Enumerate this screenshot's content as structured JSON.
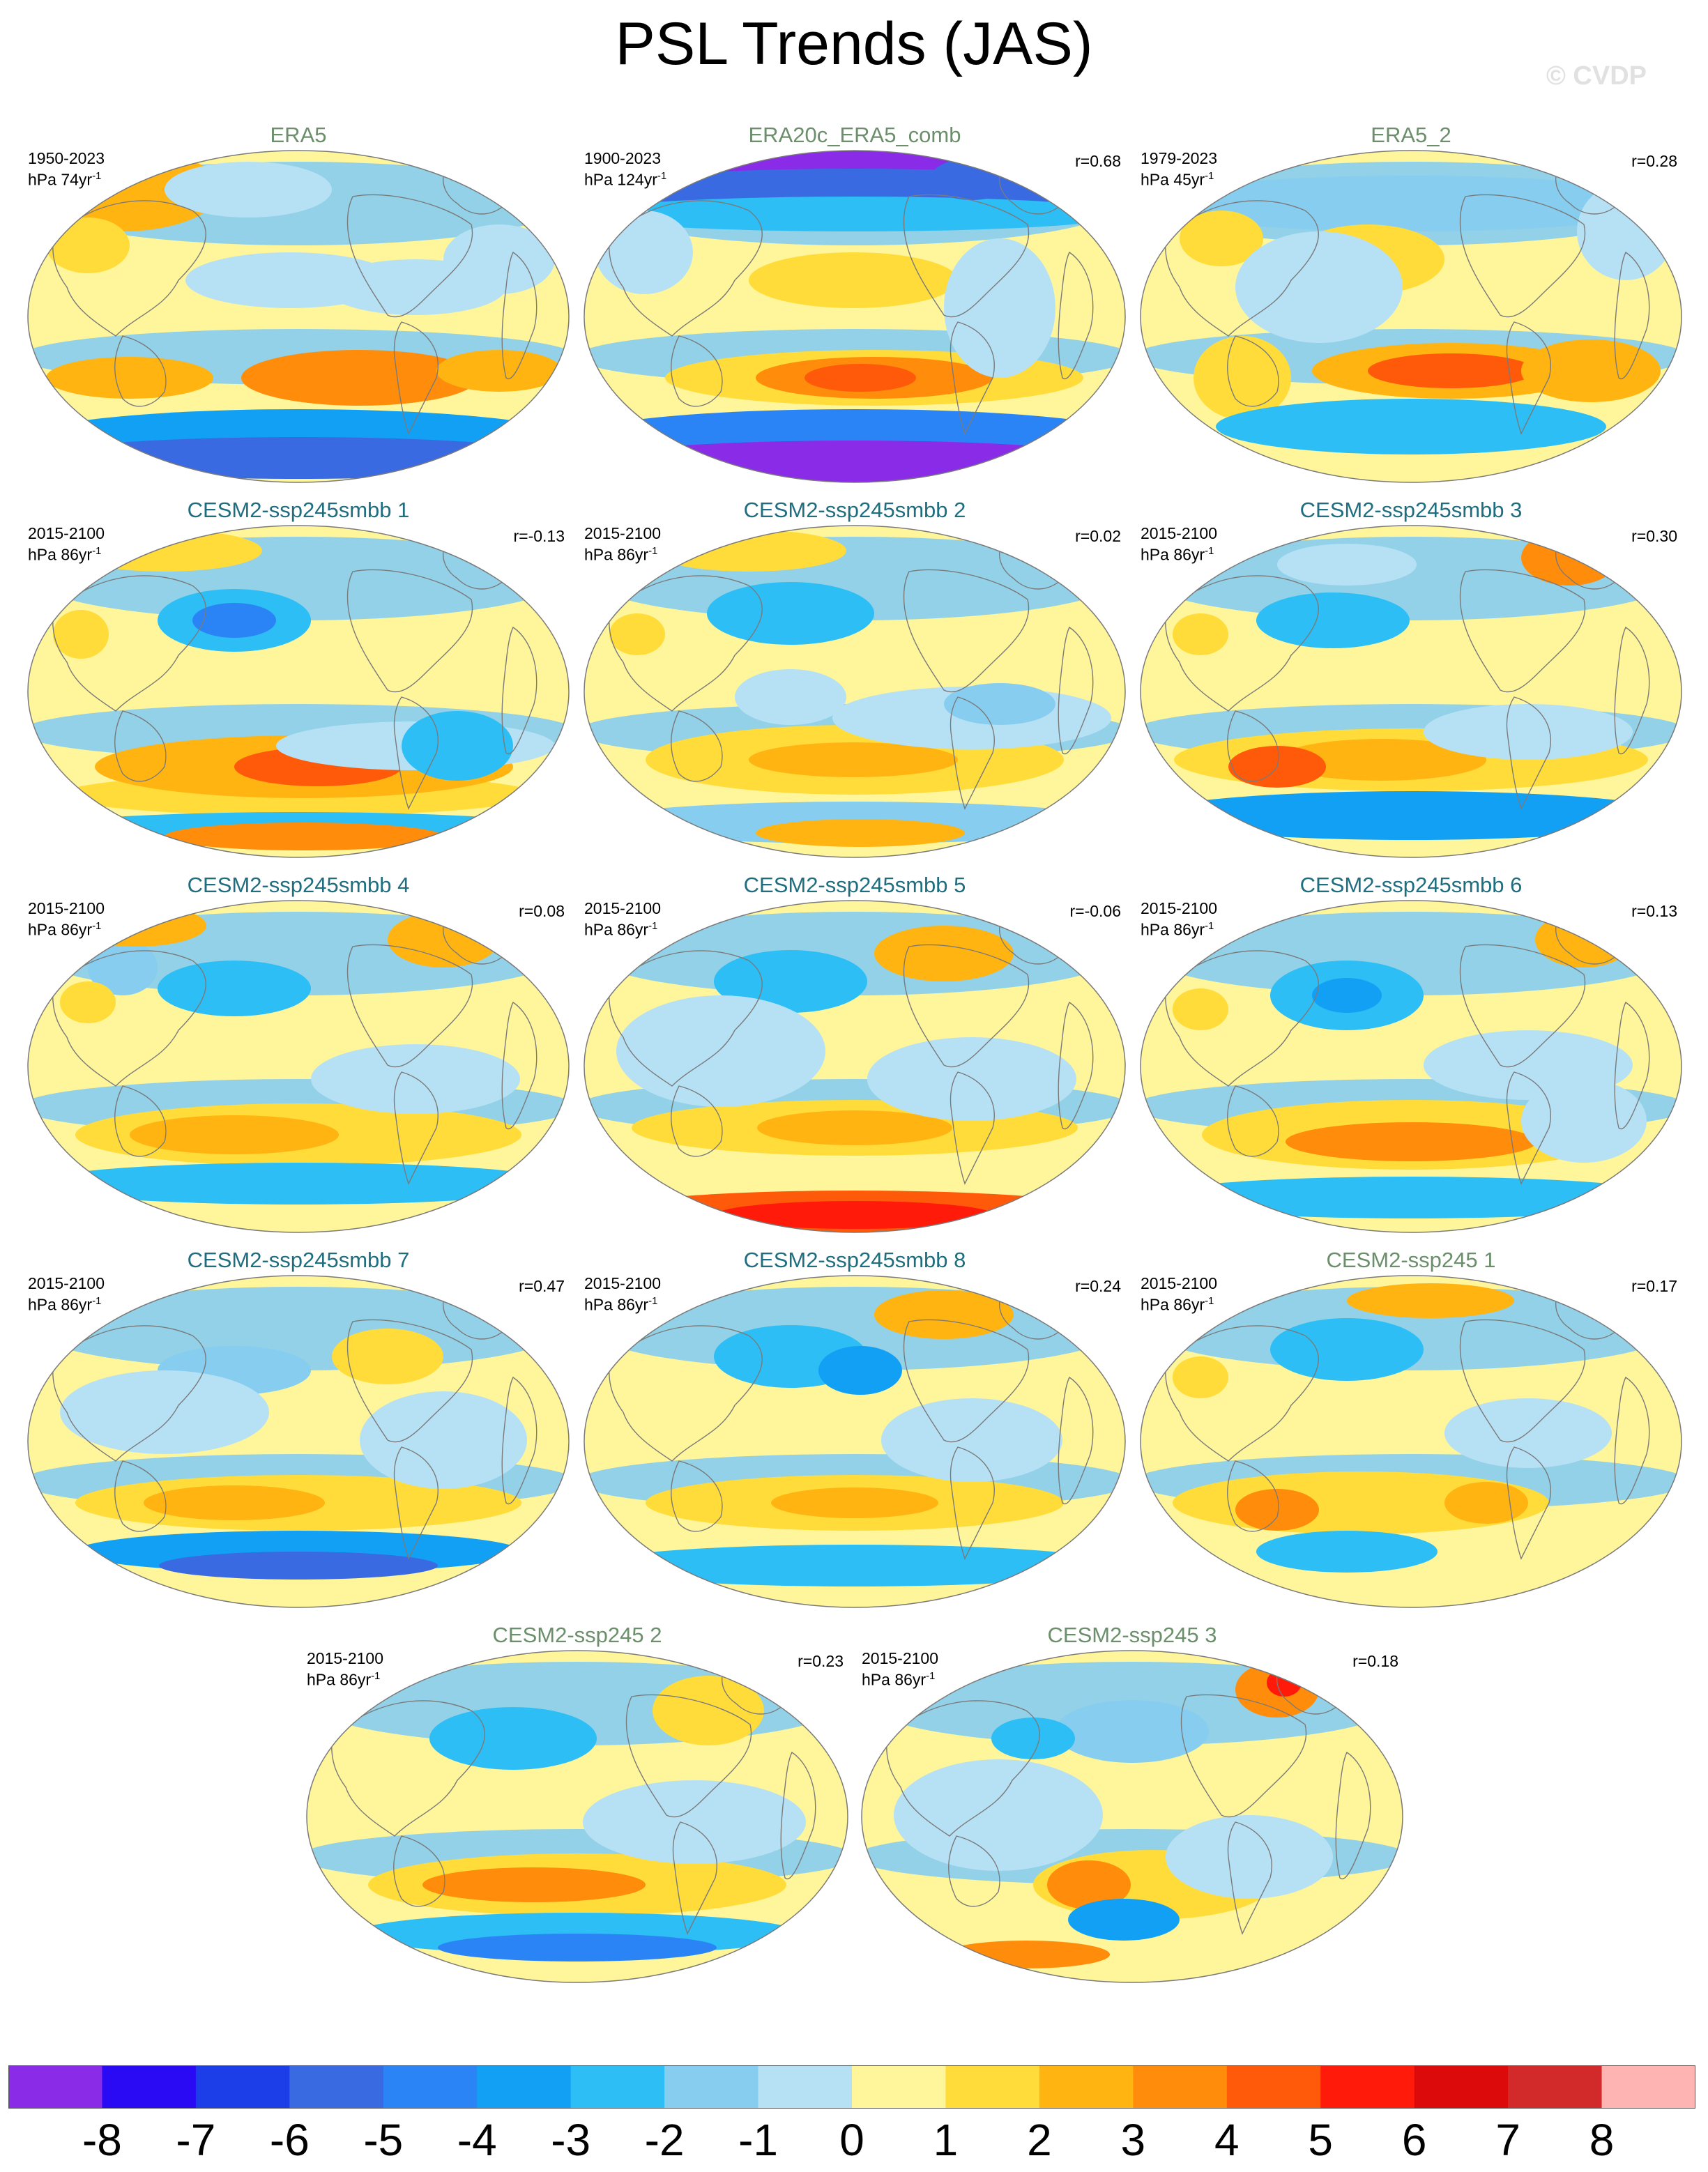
{
  "title": "PSL Trends (JAS)",
  "watermark": "© CVDP",
  "colors": {
    "obs_title": "#6b8e6b",
    "model_title": "#1e6e80",
    "coast": "#7a7a7a"
  },
  "panels": [
    {
      "title": "ERA5",
      "kind": "obs",
      "period": "1950-2023",
      "units": "hPa 74yr",
      "units_exp": "-1",
      "r": ""
    },
    {
      "title": "ERA20c_ERA5_comb",
      "kind": "obs",
      "period": "1900-2023",
      "units": "hPa 124yr",
      "units_exp": "-1",
      "r": "r=0.68"
    },
    {
      "title": "ERA5_2",
      "kind": "obs",
      "period": "1979-2023",
      "units": "hPa 45yr",
      "units_exp": "-1",
      "r": "r=0.28"
    },
    {
      "title": "CESM2-ssp245smbb 1",
      "kind": "model",
      "period": "2015-2100",
      "units": "hPa 86yr",
      "units_exp": "-1",
      "r": "r=-0.13"
    },
    {
      "title": "CESM2-ssp245smbb 2",
      "kind": "model",
      "period": "2015-2100",
      "units": "hPa 86yr",
      "units_exp": "-1",
      "r": "r=0.02"
    },
    {
      "title": "CESM2-ssp245smbb 3",
      "kind": "model",
      "period": "2015-2100",
      "units": "hPa 86yr",
      "units_exp": "-1",
      "r": "r=0.30"
    },
    {
      "title": "CESM2-ssp245smbb 4",
      "kind": "model",
      "period": "2015-2100",
      "units": "hPa 86yr",
      "units_exp": "-1",
      "r": "r=0.08"
    },
    {
      "title": "CESM2-ssp245smbb 5",
      "kind": "model",
      "period": "2015-2100",
      "units": "hPa 86yr",
      "units_exp": "-1",
      "r": "r=-0.06"
    },
    {
      "title": "CESM2-ssp245smbb 6",
      "kind": "model",
      "period": "2015-2100",
      "units": "hPa 86yr",
      "units_exp": "-1",
      "r": "r=0.13"
    },
    {
      "title": "CESM2-ssp245smbb 7",
      "kind": "model",
      "period": "2015-2100",
      "units": "hPa 86yr",
      "units_exp": "-1",
      "r": "r=0.47"
    },
    {
      "title": "CESM2-ssp245smbb 8",
      "kind": "model",
      "period": "2015-2100",
      "units": "hPa 86yr",
      "units_exp": "-1",
      "r": "r=0.24"
    },
    {
      "title": "CESM2-ssp245 1",
      "kind": "obs",
      "period": "2015-2100",
      "units": "hPa 86yr",
      "units_exp": "-1",
      "r": "r=0.17"
    },
    {
      "title": "CESM2-ssp245 2",
      "kind": "obs",
      "period": "2015-2100",
      "units": "hPa 86yr",
      "units_exp": "-1",
      "r": "r=0.23"
    },
    {
      "title": "CESM2-ssp245 3",
      "kind": "obs",
      "period": "2015-2100",
      "units": "hPa 86yr",
      "units_exp": "-1",
      "r": "r=0.18"
    }
  ],
  "colorbar": {
    "colors": [
      "#8a2be8",
      "#2a0af5",
      "#1c3ee8",
      "#3a6ae2",
      "#2a84f5",
      "#12a0f5",
      "#2cbef5",
      "#86cdf0",
      "#b6e1f5",
      "#fff59a",
      "#ffdc3a",
      "#ffb412",
      "#ff8c0a",
      "#ff5a0a",
      "#ff1a0a",
      "#dc0a0a",
      "#d22a2a",
      "#ffb4b4"
    ],
    "labels": [
      "-8",
      "-7",
      "-6",
      "-5",
      "-4",
      "-3",
      "-2",
      "-1",
      "0",
      "1",
      "2",
      "3",
      "4",
      "5",
      "6",
      "7",
      "8"
    ]
  }
}
